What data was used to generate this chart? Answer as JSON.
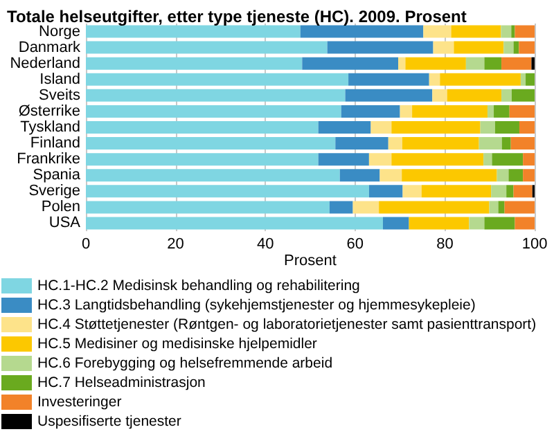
{
  "chart_data": {
    "type": "bar",
    "orientation": "horizontal",
    "stacked": true,
    "title": "Totale helseutgifter, etter type tjeneste (HC). 2009. Prosent",
    "xlabel": "Prosent",
    "categories": [
      "Norge",
      "Danmark",
      "Nederland",
      "Island",
      "Sveits",
      "Østerrike",
      "Tyskland",
      "Finland",
      "Frankrike",
      "Spania",
      "Sverige",
      "Polen",
      "USA"
    ],
    "series": [
      {
        "name": "HC.1-HC.2 Medisinsk behandling og rehabilitering",
        "color": "#7fd6e2",
        "values": [
          47.8,
          53.8,
          48.2,
          58.5,
          57.8,
          56.9,
          51.8,
          55.6,
          51.8,
          56.6,
          63.1,
          54.3,
          66.2
        ]
      },
      {
        "name": "HC.3 Langtidsbehandling (sykehjemstjenester og hjemmesykepleie)",
        "color": "#3a8cc4",
        "values": [
          27.4,
          23.6,
          21.4,
          18.0,
          19.4,
          13.1,
          11.7,
          11.8,
          11.3,
          8.9,
          7.5,
          5.2,
          5.8
        ]
      },
      {
        "name": "HC.4 Støttetjenester (Røntgen- og laboratorietjenester samt pasienttransport)",
        "color": "#fde38a",
        "values": [
          6.2,
          4.6,
          1.6,
          2.4,
          3.3,
          2.7,
          4.6,
          3.1,
          5.0,
          4.9,
          4.2,
          5.8,
          0
        ]
      },
      {
        "name": "HC.5 Medisiner og medisinske hjelpemidler",
        "color": "#fcc800",
        "values": [
          11.1,
          11.1,
          13.5,
          18.0,
          12.1,
          16.8,
          19.8,
          17.1,
          20.5,
          21.2,
          15.5,
          24.6,
          13.4
        ]
      },
      {
        "name": "HC.6 Forebygging og helsefremmende arbeid",
        "color": "#b5d98f",
        "values": [
          2.3,
          2.2,
          4.1,
          1.1,
          2.3,
          1.4,
          3.3,
          5.1,
          1.9,
          2.6,
          3.4,
          2.0,
          3.4
        ]
      },
      {
        "name": "HC.7 Helseadministrasjon",
        "color": "#6aaa1f",
        "values": [
          0.8,
          1.2,
          3.8,
          2.0,
          5.1,
          3.5,
          5.4,
          2.0,
          6.9,
          3.2,
          1.6,
          1.4,
          6.8
        ]
      },
      {
        "name": "Investeringer",
        "color": "#f28229",
        "values": [
          4.4,
          3.5,
          6.7,
          0,
          0,
          5.6,
          3.4,
          5.3,
          2.6,
          2.6,
          4.2,
          6.7,
          4.4
        ]
      },
      {
        "name": "Uspesifiserte tjenester",
        "color": "#000000",
        "values": [
          0,
          0,
          0.7,
          0,
          0,
          0,
          0,
          0,
          0,
          0,
          0.5,
          0,
          0
        ]
      }
    ],
    "xlim": [
      0,
      100
    ],
    "xticks": [
      0,
      20,
      40,
      60,
      80,
      100
    ],
    "grid": "x",
    "legend": "bottom"
  }
}
